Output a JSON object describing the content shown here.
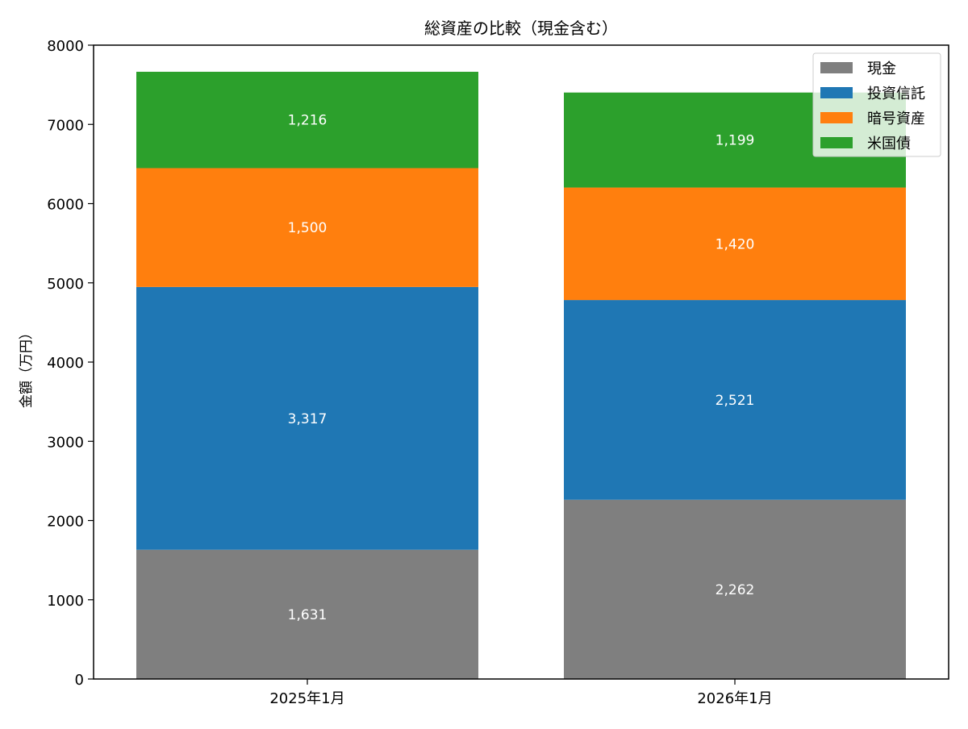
{
  "chart_data": {
    "type": "bar",
    "stacked": true,
    "title": "総資産の比較（現金含む）",
    "xlabel": "",
    "ylabel": "金額（万円）",
    "ylim": [
      0,
      8000
    ],
    "yticks": [
      0,
      1000,
      2000,
      3000,
      4000,
      5000,
      6000,
      7000,
      8000
    ],
    "categories": [
      "2025年1月",
      "2026年1月"
    ],
    "series": [
      {
        "name": "現金",
        "color": "#7f7f7f",
        "values": [
          1631,
          2262
        ],
        "labels": [
          "1,631",
          "2,262"
        ]
      },
      {
        "name": "投資信託",
        "color": "#1f77b4",
        "values": [
          3317,
          2521
        ],
        "labels": [
          "3,317",
          "2,521"
        ]
      },
      {
        "name": "暗号資産",
        "color": "#ff7f0e",
        "values": [
          1500,
          1420
        ],
        "labels": [
          "1,500",
          "1,420"
        ]
      },
      {
        "name": "米国債",
        "color": "#2ca02c",
        "values": [
          1216,
          1199
        ],
        "labels": [
          "1,216",
          "1,199"
        ]
      }
    ],
    "grid": false,
    "legend_position": "top-right",
    "data_label_color": "#ffffff"
  }
}
